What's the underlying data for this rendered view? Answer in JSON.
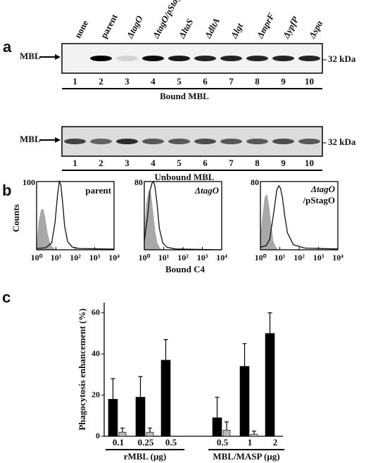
{
  "panel_a": {
    "letter": "a",
    "lanes": [
      "none",
      "parent",
      "ΔtagO",
      "ΔtagO/pStagO",
      "ΔltaS",
      "ΔdltA",
      "Δlgt",
      "ΔmprF",
      "ΔypfP",
      "Δspa"
    ],
    "lane_numbers": [
      1,
      2,
      3,
      4,
      5,
      6,
      7,
      8,
      9,
      10
    ],
    "blot_label": "MBL",
    "size_marker": "32 kDa",
    "bound_title": "Bound MBL",
    "unbound_title": "Unbound MBL"
  },
  "panel_b": {
    "letter": "b",
    "y_label": "Counts",
    "x_label": "Bound C4",
    "charts": [
      {
        "type": "histogram-overlay",
        "title": "parent",
        "xscale": "log",
        "xlim": [
          1,
          10000
        ],
        "xticks": [
          {
            "value": 1,
            "label": "10⁰"
          },
          {
            "value": 10,
            "label": "10¹"
          },
          {
            "value": 100,
            "label": "10²"
          },
          {
            "value": 1000,
            "label": "10³"
          },
          {
            "value": 10000,
            "label": "10⁴"
          }
        ],
        "ylim": [
          0,
          100
        ],
        "yticks": [
          100
        ],
        "curves": [
          {
            "color": "#a8a8a8",
            "filled": true,
            "x": [
              1,
              1.3,
              1.7,
              2.2,
              2.8,
              3.6,
              4.6,
              6,
              8,
              10
            ],
            "values": [
              5,
              40,
              58,
              60,
              45,
              25,
              12,
              5,
              2,
              0
            ]
          },
          {
            "color": "#111111",
            "filled": false,
            "x": [
              1,
              3,
              6,
              9,
              12,
              15,
              18,
              22,
              28,
              40,
              70,
              150,
              10000
            ],
            "values": [
              2,
              3,
              10,
              40,
              80,
              100,
              95,
              70,
              35,
              12,
              4,
              2,
              1
            ]
          }
        ]
      },
      {
        "type": "histogram-overlay",
        "title": "ΔtagO",
        "xscale": "log",
        "xlim": [
          1,
          10000
        ],
        "xticks": [
          {
            "value": 1,
            "label": "10⁰"
          },
          {
            "value": 10,
            "label": "10¹"
          },
          {
            "value": 100,
            "label": "10²"
          },
          {
            "value": 1000,
            "label": "10³"
          },
          {
            "value": 10000,
            "label": "10⁴"
          }
        ],
        "ylim": [
          0,
          80
        ],
        "yticks": [
          80
        ],
        "curves": [
          {
            "color": "#a8a8a8",
            "filled": true,
            "x": [
              1,
              1.3,
              1.7,
              2.2,
              2.8,
              3.6,
              4.6,
              6,
              8
            ],
            "values": [
              20,
              55,
              70,
              65,
              45,
              22,
              8,
              3,
              0
            ]
          },
          {
            "color": "#111111",
            "filled": false,
            "x": [
              1,
              1.5,
              2,
              2.5,
              3,
              3.5,
              4.5,
              6,
              9,
              15,
              40,
              10000
            ],
            "values": [
              10,
              40,
              70,
              78,
              80,
              75,
              55,
              25,
              8,
              3,
              1,
              0
            ]
          }
        ]
      },
      {
        "type": "histogram-overlay",
        "title": "ΔtagO",
        "subtitle": "/pStagO",
        "xscale": "log",
        "xlim": [
          1,
          10000
        ],
        "xticks": [
          {
            "value": 1,
            "label": "10⁰"
          },
          {
            "value": 10,
            "label": "10¹"
          },
          {
            "value": 100,
            "label": "10²"
          },
          {
            "value": 1000,
            "label": "10³"
          },
          {
            "value": 10000,
            "label": "10⁴"
          }
        ],
        "ylim": [
          0,
          80
        ],
        "yticks": [
          80
        ],
        "curves": [
          {
            "color": "#a8a8a8",
            "filled": true,
            "x": [
              1,
              1.3,
              1.7,
              2.2,
              2.8,
              3.6,
              4.6,
              6,
              8
            ],
            "values": [
              15,
              40,
              62,
              65,
              50,
              28,
              10,
              4,
              0
            ]
          },
          {
            "color": "#111111",
            "filled": false,
            "x": [
              1,
              2,
              3,
              5,
              7,
              9,
              11,
              14,
              18,
              25,
              50,
              200,
              10000
            ],
            "values": [
              3,
              5,
              12,
              45,
              70,
              75,
              72,
              60,
              40,
              20,
              6,
              2,
              1
            ]
          }
        ]
      }
    ]
  },
  "panel_c": {
    "letter": "c",
    "chart_data": {
      "type": "bar",
      "y_label": "Phagocytosis enhancement (%)",
      "groups": [
        "rMBL (µg)",
        "MBL/MASP (µg)"
      ],
      "categories": [
        "0.1",
        "0.25",
        "0.5",
        "0.5",
        "1",
        "2"
      ],
      "ylim": [
        0,
        65
      ],
      "yticks": [
        0,
        20,
        40,
        60
      ],
      "series": [
        {
          "color": "#000000",
          "values": [
            18,
            19,
            37,
            9,
            34,
            50
          ],
          "errors": [
            10,
            10,
            10,
            10,
            11,
            10
          ]
        },
        {
          "color": "#b8b8b8",
          "values": [
            2,
            2,
            null,
            3,
            1,
            null
          ],
          "errors": [
            2,
            2,
            null,
            4,
            1.5,
            null
          ]
        }
      ]
    }
  }
}
